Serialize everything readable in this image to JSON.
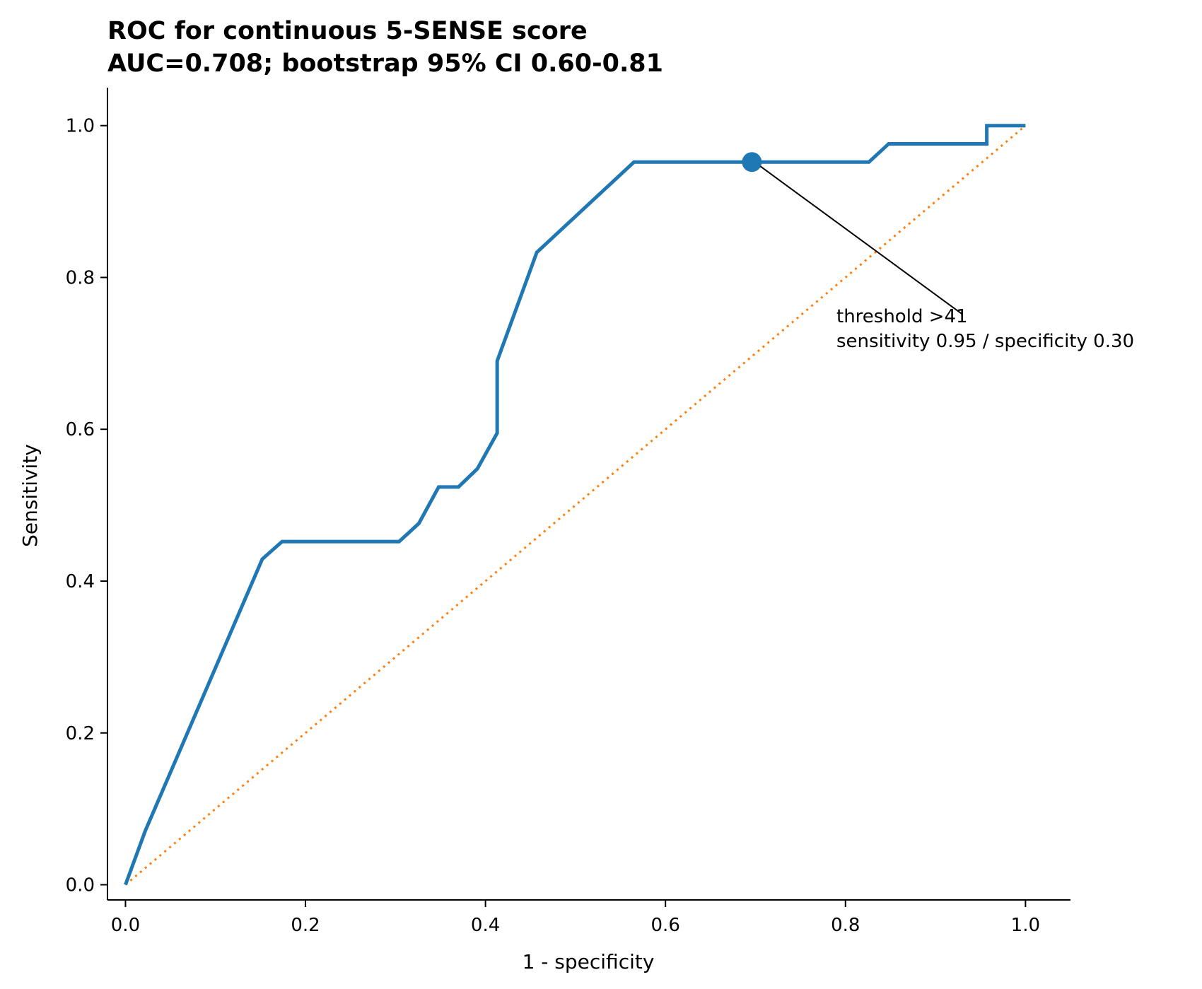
{
  "chart_data": {
    "type": "line",
    "title_line1": "ROC for continuous 5-SENSE score",
    "title_line2": "AUC=0.708; bootstrap 95% CI 0.60-0.81",
    "xlabel": "1 - specificity",
    "ylabel": "Sensitivity",
    "xlim": [
      -0.02,
      1.05
    ],
    "ylim": [
      -0.02,
      1.05
    ],
    "xticks": [
      0.0,
      0.2,
      0.4,
      0.6,
      0.8,
      1.0
    ],
    "yticks": [
      0.0,
      0.2,
      0.4,
      0.6,
      0.8,
      1.0
    ],
    "tick_labels": [
      "0.0",
      "0.2",
      "0.4",
      "0.6",
      "0.8",
      "1.0"
    ],
    "grid": false,
    "series": [
      {
        "color": "#1f77b4",
        "style": "solid",
        "x": [
          0.0,
          0.022,
          0.152,
          0.174,
          0.304,
          0.326,
          0.348,
          0.37,
          0.391,
          0.413,
          0.413,
          0.457,
          0.565,
          0.696,
          0.826,
          0.848,
          0.957,
          0.957,
          1.0
        ],
        "y": [
          0.0,
          0.071,
          0.429,
          0.452,
          0.452,
          0.476,
          0.524,
          0.524,
          0.548,
          0.595,
          0.69,
          0.833,
          0.952,
          0.952,
          0.952,
          0.976,
          0.976,
          1.0,
          1.0
        ]
      },
      {
        "color": "#ff7f0e",
        "style": "dotted",
        "x": [
          0.0,
          1.0
        ],
        "y": [
          0.0,
          1.0
        ]
      }
    ],
    "marker": {
      "x": 0.696,
      "y": 0.952,
      "color": "#1f77b4"
    },
    "annotation": {
      "line1": "threshold >41",
      "line2": "sensitivity 0.95 / specificity 0.30",
      "arrow_to": [
        0.696,
        0.952
      ],
      "arrow_from": [
        0.93,
        0.77
      ]
    }
  }
}
